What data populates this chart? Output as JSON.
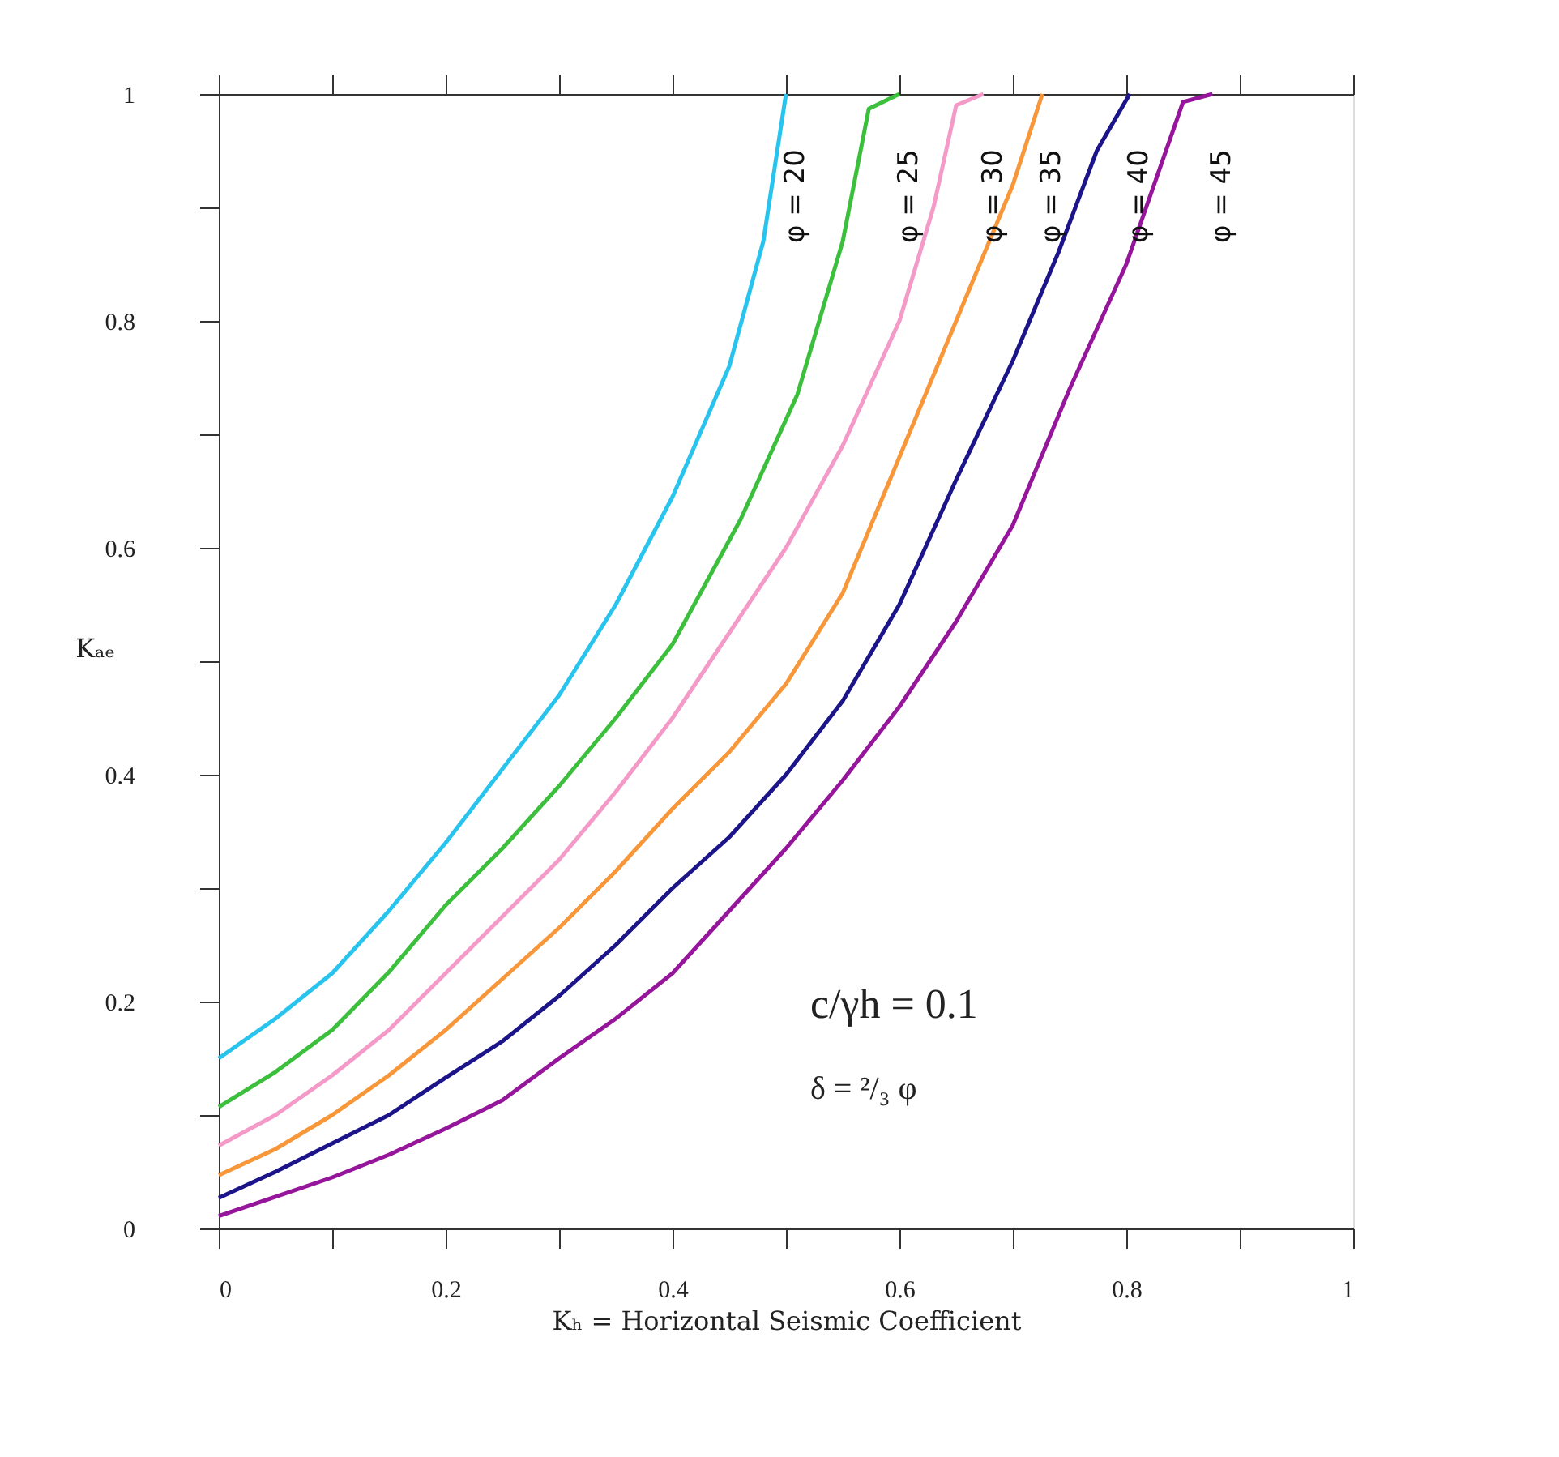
{
  "chart_data": {
    "type": "line",
    "xlabel": "Kₕ = Horizontal Seismic Coefficient",
    "ylabel": "Kₐₑ",
    "xlim": [
      0,
      1
    ],
    "ylim": [
      0,
      1
    ],
    "xticks": [
      0,
      {
        "value": 0.1,
        "label": null
      },
      0.2,
      {
        "value": 0.3,
        "label": null
      },
      0.4,
      {
        "value": 0.5,
        "label": null
      },
      0.6,
      {
        "value": 0.7,
        "label": null
      },
      0.8,
      {
        "value": 0.9,
        "label": null
      },
      1
    ],
    "yticks": [
      0,
      {
        "value": 0.1,
        "label": null
      },
      0.2,
      {
        "value": 0.3,
        "label": null
      },
      0.4,
      {
        "value": 0.5,
        "label": null
      },
      0.6,
      {
        "value": 0.7,
        "label": null
      },
      0.8,
      {
        "value": 0.9,
        "label": null
      },
      1
    ],
    "grid": false,
    "legend": false,
    "marker": "none",
    "line_style": "solid",
    "annotations": [
      "c/γh = 0.1",
      "δ = ²/₃ φ"
    ],
    "series": [
      {
        "name": "φ = 20",
        "color": "#29c4ee",
        "x": [
          0,
          0.05,
          0.1,
          0.15,
          0.2,
          0.25,
          0.3,
          0.35,
          0.4,
          0.45,
          0.48,
          0.5
        ],
        "values": [
          0.15,
          0.185,
          0.225,
          0.28,
          0.34,
          0.405,
          0.47,
          0.55,
          0.645,
          0.76,
          0.87,
          1.0
        ]
      },
      {
        "name": "φ = 25",
        "color": "#3cbf3c",
        "x": [
          0,
          0.05,
          0.1,
          0.15,
          0.2,
          0.25,
          0.3,
          0.35,
          0.4,
          0.43,
          0.46,
          0.51,
          0.55,
          0.573,
          0.6
        ],
        "values": [
          0.107,
          0.138,
          0.175,
          0.226,
          0.285,
          0.335,
          0.39,
          0.45,
          0.515,
          0.57,
          0.625,
          0.735,
          0.87,
          0.987,
          1.0
        ]
      },
      {
        "name": "φ = 30",
        "color": "#f49ac8",
        "x": [
          0,
          0.05,
          0.1,
          0.15,
          0.2,
          0.25,
          0.3,
          0.35,
          0.4,
          0.45,
          0.5,
          0.55,
          0.6,
          0.63,
          0.65,
          0.674
        ],
        "values": [
          0.073,
          0.1,
          0.135,
          0.175,
          0.225,
          0.275,
          0.325,
          0.385,
          0.45,
          0.525,
          0.6,
          0.69,
          0.8,
          0.9,
          0.99,
          1.0
        ]
      },
      {
        "name": "φ = 35",
        "color": "#f7973a",
        "x": [
          0,
          0.05,
          0.1,
          0.15,
          0.2,
          0.25,
          0.3,
          0.35,
          0.4,
          0.45,
          0.5,
          0.55,
          0.6,
          0.65,
          0.7,
          0.726
        ],
        "values": [
          0.047,
          0.07,
          0.1,
          0.135,
          0.175,
          0.22,
          0.265,
          0.315,
          0.37,
          0.42,
          0.48,
          0.56,
          0.68,
          0.8,
          0.92,
          1.0
        ]
      },
      {
        "name": "φ = 40",
        "color": "#1c1489",
        "x": [
          0,
          0.05,
          0.1,
          0.15,
          0.2,
          0.25,
          0.3,
          0.35,
          0.4,
          0.45,
          0.5,
          0.55,
          0.6,
          0.65,
          0.7,
          0.74,
          0.774,
          0.803
        ],
        "values": [
          0.027,
          0.05,
          0.075,
          0.1,
          0.133,
          0.165,
          0.205,
          0.25,
          0.3,
          0.345,
          0.4,
          0.465,
          0.55,
          0.66,
          0.765,
          0.86,
          0.95,
          1.0
        ]
      },
      {
        "name": "φ = 45",
        "color": "#96169b",
        "x": [
          0,
          0.05,
          0.1,
          0.15,
          0.2,
          0.25,
          0.3,
          0.35,
          0.4,
          0.45,
          0.5,
          0.55,
          0.6,
          0.65,
          0.7,
          0.75,
          0.8,
          0.85,
          0.876
        ],
        "values": [
          0.011,
          0.028,
          0.045,
          0.065,
          0.088,
          0.113,
          0.15,
          0.185,
          0.225,
          0.28,
          0.335,
          0.395,
          0.46,
          0.535,
          0.62,
          0.74,
          0.85,
          0.993,
          1.0
        ]
      }
    ]
  }
}
